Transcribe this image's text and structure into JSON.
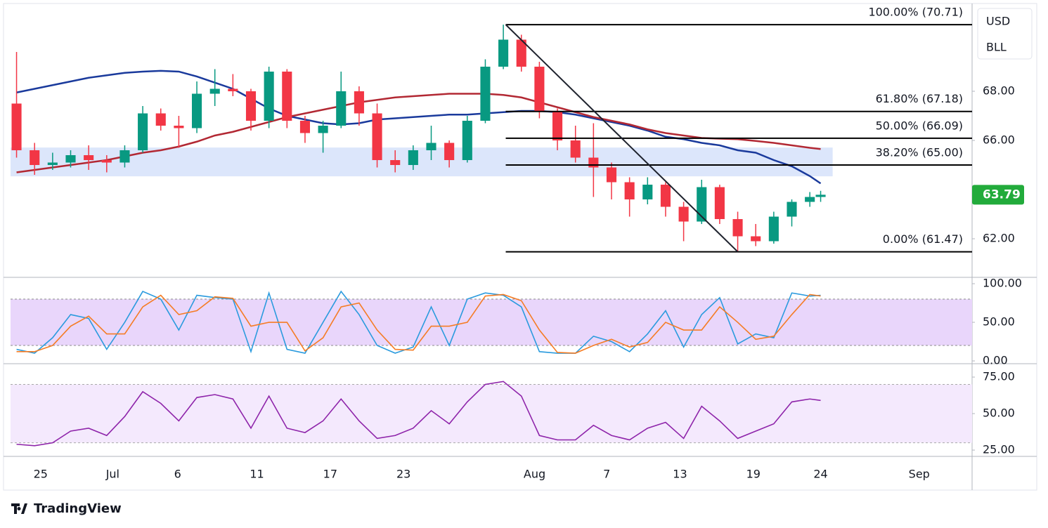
{
  "brand": "TradingView",
  "currency": "USD",
  "symbol": "BLL",
  "chart_data": [
    {
      "type": "candlestick",
      "xlim": [
        0,
        80
      ],
      "ylim": [
        60.43,
        71.57
      ],
      "yticks": [
        {
          "value": 68,
          "label": "68.00"
        },
        {
          "value": 66,
          "label": "66.00"
        },
        {
          "value": 62,
          "label": "62.00"
        }
      ],
      "last_price": 63.79,
      "last_price_color": "#22ab3b",
      "up_color": "#089981",
      "down_color": "#f23645",
      "x": [
        0.5,
        2,
        3.5,
        5,
        6.5,
        8,
        9.5,
        11,
        12.5,
        14,
        15.5,
        17,
        18.5,
        20,
        21.5,
        23,
        24.5,
        26,
        27.5,
        29,
        30.5,
        32,
        33.5,
        35,
        36.5,
        38,
        39.5,
        41,
        42.5,
        44,
        45.5,
        47,
        48.5,
        50,
        51.5,
        53,
        54.5,
        56,
        57.5,
        59,
        60.5,
        62,
        63.5,
        65,
        66.5,
        67.4
      ],
      "open": [
        67.5,
        65.6,
        65.0,
        65.1,
        65.4,
        65.2,
        65.1,
        65.6,
        67.1,
        66.6,
        66.5,
        67.9,
        68.1,
        68.0,
        66.8,
        68.8,
        66.8,
        66.3,
        66.6,
        68.0,
        67.1,
        65.2,
        65.0,
        65.6,
        65.9,
        65.2,
        66.8,
        69.0,
        70.1,
        69.0,
        67.2,
        66.0,
        65.3,
        64.9,
        64.3,
        63.6,
        64.2,
        63.3,
        62.7,
        64.1,
        62.8,
        62.1,
        61.9,
        62.9,
        63.5,
        63.7
      ],
      "high": [
        69.6,
        65.9,
        65.5,
        65.6,
        65.8,
        65.4,
        65.8,
        67.4,
        67.3,
        67.0,
        68.4,
        68.9,
        68.7,
        68.1,
        69.0,
        68.9,
        67.0,
        66.8,
        68.8,
        68.2,
        67.5,
        65.6,
        65.8,
        66.6,
        66.0,
        67.0,
        69.3,
        70.71,
        70.3,
        69.2,
        67.3,
        66.6,
        66.7,
        65.1,
        64.5,
        64.5,
        64.3,
        63.5,
        64.4,
        64.2,
        63.1,
        62.6,
        63.1,
        63.6,
        63.9,
        63.95
      ],
      "low": [
        65.3,
        64.6,
        64.8,
        64.9,
        64.8,
        64.7,
        64.9,
        65.5,
        66.4,
        65.7,
        66.3,
        67.4,
        67.8,
        66.4,
        66.5,
        66.5,
        65.9,
        65.5,
        66.5,
        66.6,
        64.9,
        64.7,
        64.8,
        65.2,
        64.9,
        65.1,
        66.7,
        68.9,
        68.8,
        66.9,
        65.6,
        65.1,
        63.7,
        63.6,
        62.9,
        63.4,
        62.9,
        61.9,
        62.6,
        62.6,
        61.47,
        61.7,
        61.8,
        62.5,
        63.3,
        63.5
      ],
      "close": [
        65.6,
        65.0,
        65.1,
        65.4,
        65.2,
        65.1,
        65.6,
        67.1,
        66.6,
        66.5,
        67.9,
        68.1,
        68.0,
        66.8,
        68.8,
        66.8,
        66.3,
        66.6,
        68.0,
        67.1,
        65.2,
        65.0,
        65.6,
        65.9,
        65.2,
        66.8,
        69.0,
        70.1,
        69.0,
        67.2,
        66.0,
        65.3,
        64.9,
        64.3,
        63.6,
        64.2,
        63.3,
        62.7,
        64.1,
        62.8,
        62.1,
        61.9,
        62.9,
        63.5,
        63.7,
        63.79
      ],
      "series": [
        {
          "color": "#1a3a9c",
          "values": [
            67.95,
            68.1,
            68.25,
            68.4,
            68.55,
            68.65,
            68.75,
            68.8,
            68.83,
            68.8,
            68.6,
            68.35,
            68.1,
            67.7,
            67.3,
            67.0,
            66.85,
            66.7,
            66.65,
            66.7,
            66.85,
            66.9,
            66.95,
            67.0,
            67.05,
            67.05,
            67.1,
            67.15,
            67.2,
            67.2,
            67.15,
            67.05,
            66.9,
            66.75,
            66.6,
            66.4,
            66.15,
            66.05,
            65.9,
            65.8,
            65.6,
            65.5,
            65.2,
            64.95,
            64.55,
            64.25
          ]
        },
        {
          "color": "#b22833",
          "values": [
            64.7,
            64.8,
            64.9,
            65.0,
            65.1,
            65.2,
            65.35,
            65.5,
            65.6,
            65.75,
            65.95,
            66.2,
            66.35,
            66.55,
            66.75,
            66.95,
            67.1,
            67.25,
            67.4,
            67.55,
            67.65,
            67.75,
            67.8,
            67.85,
            67.9,
            67.9,
            67.9,
            67.85,
            67.75,
            67.55,
            67.35,
            67.15,
            66.95,
            66.8,
            66.65,
            66.45,
            66.3,
            66.2,
            66.1,
            66.07,
            66.05,
            65.98,
            65.9,
            65.8,
            65.7,
            65.65
          ]
        }
      ],
      "zone": {
        "from": 64.54,
        "to": 65.71,
        "xlim": [
          0,
          68.4
        ],
        "color": "#dce6fb"
      },
      "trendline": {
        "x": [
          41.2,
          60.5
        ],
        "y": [
          70.71,
          61.47
        ]
      },
      "fib_x": 41.2,
      "fib_levels": [
        {
          "value": 70.71,
          "label": "100.00% (70.71)"
        },
        {
          "value": 67.18,
          "label": "61.80% (67.18)"
        },
        {
          "value": 66.09,
          "label": "50.00% (66.09)"
        },
        {
          "value": 65.0,
          "label": "38.20% (65.00)"
        },
        {
          "value": 61.47,
          "label": "0.00% (61.47)"
        }
      ]
    },
    {
      "type": "line",
      "xlim": [
        0,
        80
      ],
      "ylim": [
        -3.6,
        106.4
      ],
      "yticks": [
        {
          "value": 100,
          "label": "100.00"
        },
        {
          "value": 50,
          "label": "50.00"
        },
        {
          "value": 0,
          "label": "0.00"
        }
      ],
      "band": [
        20,
        80
      ],
      "band_color": "#e9d6fb",
      "band_line": "#8b8b8b",
      "x": [
        0.5,
        2,
        3.5,
        5,
        6.5,
        8,
        9.5,
        11,
        12.5,
        14,
        15.5,
        17,
        18.5,
        20,
        21.5,
        23,
        24.5,
        26,
        27.5,
        29,
        30.5,
        32,
        33.5,
        35,
        36.5,
        38,
        39.5,
        41,
        42.5,
        44,
        45.5,
        47,
        48.5,
        50,
        51.5,
        53,
        54.5,
        56,
        57.5,
        59,
        60.5,
        62,
        63.5,
        65,
        66.5,
        67.4
      ],
      "series": [
        {
          "color": "#2b9bde",
          "values": [
            15,
            10,
            30,
            60,
            55,
            15,
            50,
            90,
            80,
            40,
            85,
            82,
            80,
            12,
            88,
            15,
            10,
            50,
            90,
            60,
            20,
            10,
            18,
            70,
            20,
            80,
            88,
            85,
            70,
            12,
            10,
            10,
            32,
            25,
            12,
            35,
            65,
            18,
            60,
            82,
            22,
            35,
            30,
            88,
            84,
            85
          ]
        },
        {
          "color": "#f57c24",
          "values": [
            12,
            12,
            20,
            45,
            58,
            35,
            35,
            70,
            85,
            60,
            65,
            83,
            81,
            45,
            50,
            50,
            13,
            30,
            70,
            75,
            40,
            15,
            14,
            45,
            45,
            50,
            84,
            86,
            78,
            40,
            11,
            10,
            20,
            28,
            18,
            24,
            50,
            40,
            40,
            70,
            50,
            28,
            32,
            60,
            86,
            84
          ]
        }
      ]
    },
    {
      "type": "line",
      "xlim": [
        0,
        80
      ],
      "ylim": [
        20.7,
        83.2
      ],
      "yticks": [
        {
          "value": 75,
          "label": "75.00"
        },
        {
          "value": 50,
          "label": "50.00"
        },
        {
          "value": 25,
          "label": "25.00"
        }
      ],
      "band": [
        30,
        70
      ],
      "band_color": "#f4e9fd",
      "band_line": "#a9a9a9",
      "x": [
        0.5,
        2,
        3.5,
        5,
        6.5,
        8,
        9.5,
        11,
        12.5,
        14,
        15.5,
        17,
        18.5,
        20,
        21.5,
        23,
        24.5,
        26,
        27.5,
        29,
        30.5,
        32,
        33.5,
        35,
        36.5,
        38,
        39.5,
        41,
        42.5,
        44,
        45.5,
        47,
        48.5,
        50,
        51.5,
        53,
        54.5,
        56,
        57.5,
        59,
        60.5,
        62,
        63.5,
        65,
        66.5,
        67.4
      ],
      "series": [
        {
          "color": "#8e24aa",
          "values": [
            29,
            28,
            30,
            38,
            40,
            35,
            48,
            65,
            57,
            45,
            61,
            63,
            60,
            40,
            62,
            40,
            37,
            45,
            60,
            45,
            33,
            35,
            40,
            52,
            43,
            58,
            70,
            72,
            62,
            35,
            32,
            32,
            42,
            35,
            32,
            40,
            44,
            33,
            55,
            45,
            33,
            38,
            43,
            58,
            60,
            59
          ]
        }
      ],
      "xticks": [
        {
          "value": 2.5,
          "label": "25"
        },
        {
          "value": 8.5,
          "label": "Jul"
        },
        {
          "value": 13.9,
          "label": "6"
        },
        {
          "value": 20.5,
          "label": "11"
        },
        {
          "value": 26.6,
          "label": "17"
        },
        {
          "value": 32.7,
          "label": "23"
        },
        {
          "value": 43.6,
          "label": "Aug"
        },
        {
          "value": 49.6,
          "label": "7"
        },
        {
          "value": 55.7,
          "label": "13"
        },
        {
          "value": 61.8,
          "label": "19"
        },
        {
          "value": 67.4,
          "label": "24"
        },
        {
          "value": 75.6,
          "label": "Sep"
        }
      ]
    }
  ]
}
